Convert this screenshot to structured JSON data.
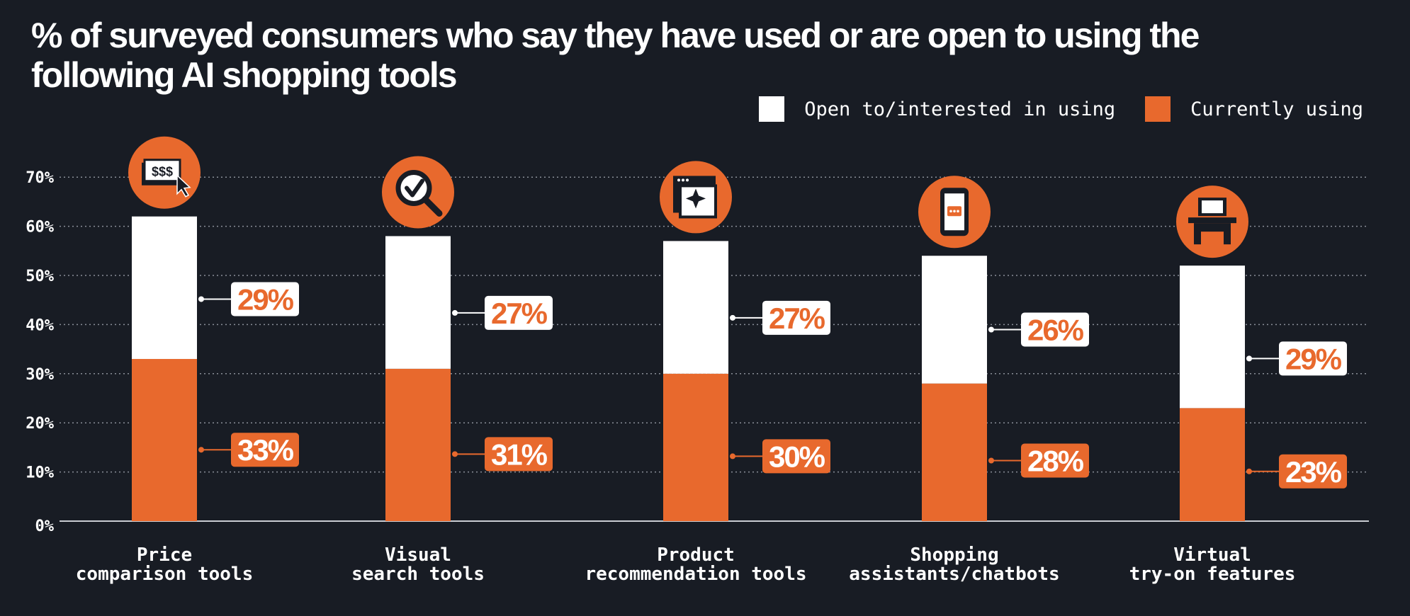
{
  "chart_data": {
    "type": "bar",
    "stacked": true,
    "title": "% of surveyed consumers who say they have used or are open to using the following AI shopping tools",
    "categories": [
      [
        "Price",
        "comparison tools"
      ],
      [
        "Visual",
        "search tools"
      ],
      [
        "Product",
        "recommendation tools"
      ],
      [
        "Shopping",
        "assistants/chatbots"
      ],
      [
        "Virtual",
        "try-on features"
      ]
    ],
    "icons": [
      "price-tag-cursor-icon",
      "magnifier-check-icon",
      "sparkle-window-icon",
      "phone-chat-icon",
      "desk-monitor-icon"
    ],
    "series": [
      {
        "name": "Currently using",
        "color": "#e8692d",
        "values": [
          33,
          31,
          30,
          28,
          23
        ],
        "labels": [
          "33%",
          "31%",
          "30%",
          "28%",
          "23%"
        ]
      },
      {
        "name": "Open to/interested in using",
        "color": "#ffffff",
        "values": [
          29,
          27,
          27,
          26,
          29
        ],
        "labels": [
          "29%",
          "27%",
          "27%",
          "26%",
          "29%"
        ]
      }
    ],
    "y_ticks": [
      "0%",
      "10%",
      "20%",
      "30%",
      "40%",
      "50%",
      "60%",
      "70%"
    ],
    "ylim": [
      0,
      70
    ],
    "legend": "top-right",
    "grid": true
  },
  "legend": {
    "open_label": "Open to/interested in using",
    "current_label": "Currently using"
  },
  "colors": {
    "background": "#181c24",
    "accent": "#e8692d",
    "white": "#ffffff",
    "grid": "#8a8f99"
  }
}
